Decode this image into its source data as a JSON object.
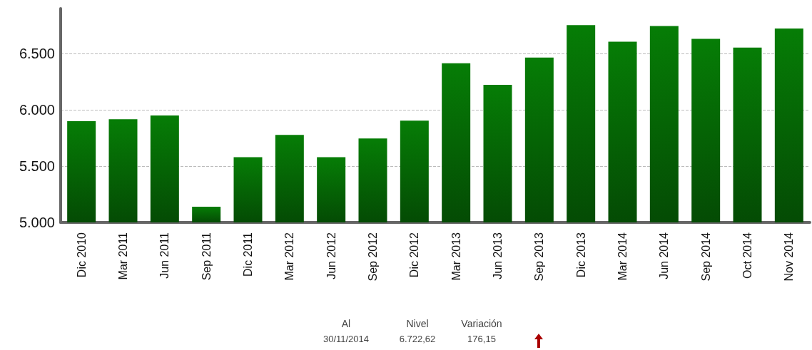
{
  "chart_data": {
    "type": "bar",
    "categories": [
      "Dic 2010",
      "Mar 2011",
      "Jun 2011",
      "Sep 2011",
      "Dic 2011",
      "Mar 2012",
      "Jun 2012",
      "Sep 2012",
      "Dic 2012",
      "Mar 2013",
      "Jun 2013",
      "Sep 2013",
      "Dic 2013",
      "Mar 2014",
      "Jun 2014",
      "Sep 2014",
      "Oct 2014",
      "Nov 2014"
    ],
    "values": [
      5900,
      5917,
      5950,
      5140,
      5580,
      5777,
      5580,
      5745,
      5904,
      6414,
      6223,
      6465,
      6752,
      6605,
      6745,
      6631,
      6554,
      6723
    ],
    "color": "#067d06",
    "ylim": [
      5000,
      6900
    ],
    "yticks": [
      {
        "value": 5000,
        "label": "5.000"
      },
      {
        "value": 5500,
        "label": "5.500"
      },
      {
        "value": 6000,
        "label": "6.000"
      },
      {
        "value": 6500,
        "label": "6.500"
      }
    ],
    "grid": "y",
    "annotations": [
      "Al",
      "Nivel",
      "Variación",
      "30/11/2014",
      "6.722,62",
      "176,15"
    ]
  }
}
